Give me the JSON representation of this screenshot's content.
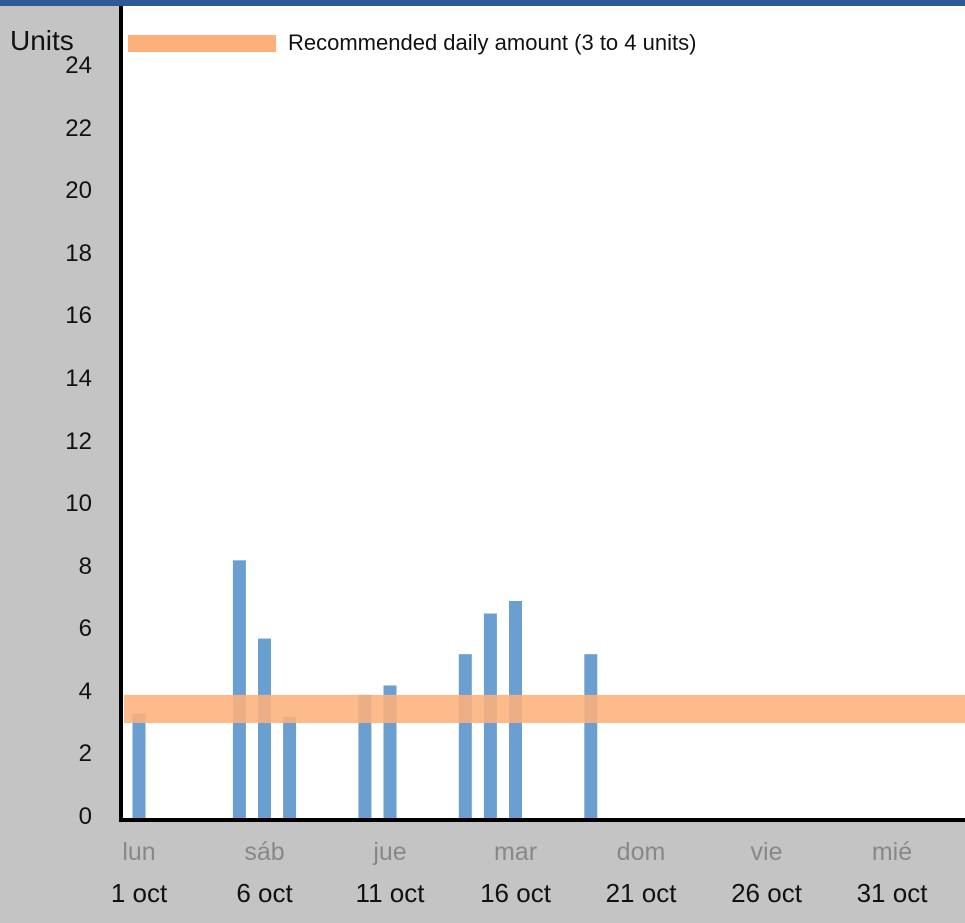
{
  "chart_data": {
    "type": "bar",
    "ylabel": "Units",
    "ylim": [
      0,
      26
    ],
    "yticks": [
      0,
      2,
      4,
      6,
      8,
      10,
      12,
      14,
      16,
      18,
      20,
      22,
      24
    ],
    "x_start": "1 oct",
    "x_end": "3 nov",
    "x_ticks": [
      {
        "day": "lun",
        "date": "1 oct"
      },
      {
        "day": "sáb",
        "date": "6 oct"
      },
      {
        "day": "jue",
        "date": "11 oct"
      },
      {
        "day": "mar",
        "date": "16 oct"
      },
      {
        "day": "dom",
        "date": "21 oct"
      },
      {
        "day": "vie",
        "date": "26 oct"
      },
      {
        "day": "mié",
        "date": "31 oct"
      }
    ],
    "values": [
      {
        "date": "1 oct",
        "value": 3.4
      },
      {
        "date": "5 oct",
        "value": 8.3
      },
      {
        "date": "6 oct",
        "value": 5.8
      },
      {
        "date": "7 oct",
        "value": 3.3
      },
      {
        "date": "10 oct",
        "value": 4.0
      },
      {
        "date": "11 oct",
        "value": 4.3
      },
      {
        "date": "14 oct",
        "value": 5.3
      },
      {
        "date": "15 oct",
        "value": 6.6
      },
      {
        "date": "16 oct",
        "value": 7.0
      },
      {
        "date": "19 oct",
        "value": 5.3
      }
    ],
    "reference_band": {
      "label": "Recommended daily amount (3 to 4 units)",
      "low": 3.1,
      "high": 4.0
    },
    "bar_color": "#6b9ed1",
    "band_color": "#fdb07a",
    "legend_position": "top"
  }
}
